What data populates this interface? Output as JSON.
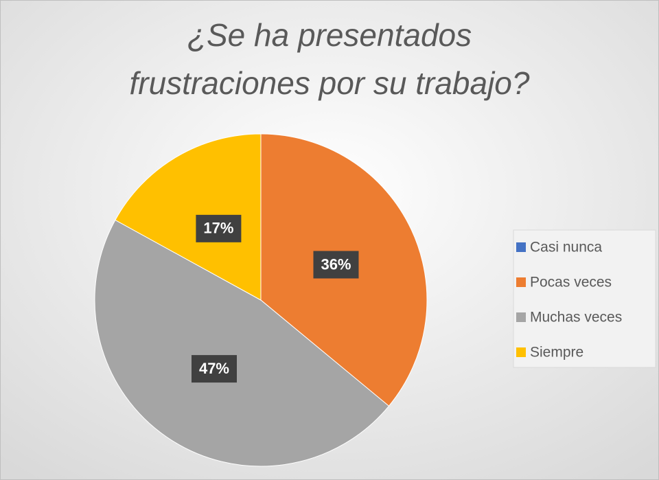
{
  "chart_data": {
    "type": "pie",
    "title": "¿Se ha presentados frustraciones por su trabajo?",
    "categories": [
      "Casi nunca",
      "Pocas veces",
      "Muchas veces",
      "Siempre"
    ],
    "values": [
      0,
      36,
      47,
      17
    ],
    "value_labels": [
      null,
      "36%",
      "47%",
      "17%"
    ],
    "colors": [
      "#4472c4",
      "#ed7d31",
      "#a5a5a5",
      "#ffc000"
    ],
    "legend": "right"
  }
}
